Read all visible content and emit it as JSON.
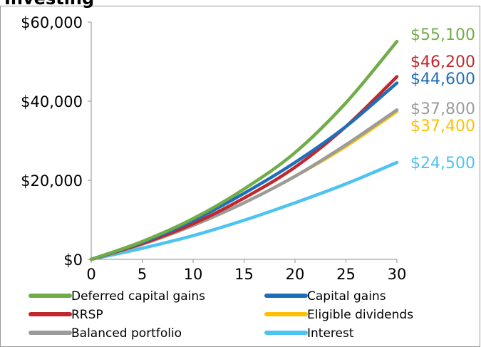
{
  "chart_data": {
    "type": "line",
    "title": "Investing",
    "xlabel": "",
    "ylabel": "",
    "xlim": [
      0,
      30
    ],
    "ylim": [
      0,
      60000
    ],
    "xticks": [
      "0",
      "5",
      "10",
      "15",
      "20",
      "25",
      "30"
    ],
    "yticks": [
      "$0",
      "$20,000",
      "$40,000",
      "$60,000"
    ],
    "grid": false,
    "legend_position": "bottom",
    "x": [
      0,
      5,
      10,
      15,
      20,
      25,
      30
    ],
    "series": [
      {
        "name": "Deferred capital gains",
        "color": "#70AD47",
        "end_label": "$55,100",
        "values": [
          0,
          4500,
          10300,
          17800,
          27000,
          39600,
          55100
        ]
      },
      {
        "name": "Capital gains",
        "color": "#1F6FB8",
        "end_label": "$44,600",
        "values": [
          0,
          4300,
          9800,
          16700,
          24500,
          33600,
          44600
        ]
      },
      {
        "name": "RRSP",
        "color": "#C0282D",
        "end_label": "$46,200",
        "values": [
          0,
          4000,
          9000,
          15500,
          23300,
          33600,
          46200
        ]
      },
      {
        "name": "Eligible dividends",
        "color": "#FFC000",
        "end_label": "$37,400",
        "values": [
          0,
          3800,
          8600,
          14300,
          21000,
          28600,
          37400
        ]
      },
      {
        "name": "Balanced portfolio",
        "color": "#9B9B9B",
        "end_label": "$37,800",
        "values": [
          0,
          3800,
          8600,
          14300,
          21000,
          29000,
          37800
        ]
      },
      {
        "name": "Interest",
        "color": "#4DC3F0",
        "end_label": "$24,500",
        "values": [
          0,
          2800,
          6000,
          9900,
          14300,
          19100,
          24500
        ]
      }
    ]
  }
}
